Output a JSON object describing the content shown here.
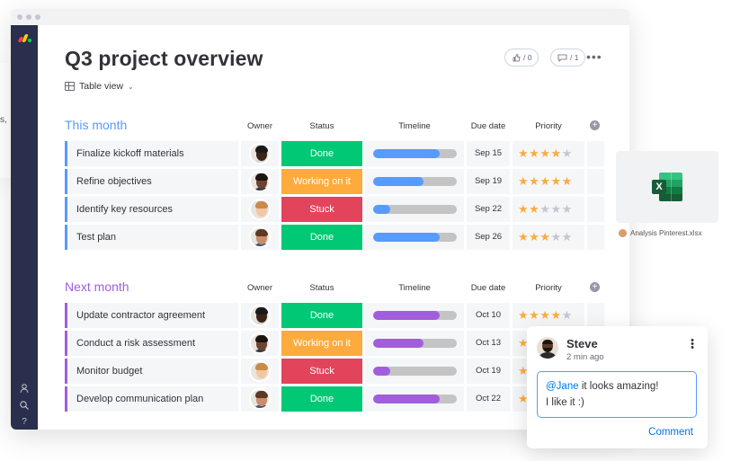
{
  "ghost": {
    "fragment": "s,"
  },
  "board": {
    "title": "Q3 project overview",
    "view_label": "Table view",
    "likes": "/ 0",
    "updates": "/ 1",
    "more": "•••"
  },
  "columns": {
    "owner": "Owner",
    "status": "Status",
    "timeline": "Timeline",
    "due": "Due date",
    "priority": "Priority",
    "add": "+"
  },
  "groups": [
    {
      "title": "This month",
      "color": "#579bfc",
      "rows": [
        {
          "name": "Finalize kickoff materials",
          "status": "Done",
          "status_color": "#00c875",
          "timeline_progress": 0.8,
          "due": "Sep 15",
          "priority": 4
        },
        {
          "name": "Refine objectives",
          "status": "Working on it",
          "status_color": "#fdab3d",
          "timeline_progress": 0.6,
          "due": "Sep 19",
          "priority": 5
        },
        {
          "name": "Identify key resources",
          "status": "Stuck",
          "status_color": "#e2445c",
          "timeline_progress": 0.2,
          "due": "Sep 22",
          "priority": 2
        },
        {
          "name": "Test plan",
          "status": "Done",
          "status_color": "#00c875",
          "timeline_progress": 0.8,
          "due": "Sep 26",
          "priority": 3
        }
      ]
    },
    {
      "title": "Next month",
      "color": "#a25ddc",
      "rows": [
        {
          "name": "Update contractor agreement",
          "status": "Done",
          "status_color": "#00c875",
          "timeline_progress": 0.8,
          "due": "Oct 10",
          "priority": 4
        },
        {
          "name": "Conduct a risk assessment",
          "status": "Working on it",
          "status_color": "#fdab3d",
          "timeline_progress": 0.6,
          "due": "Oct 13",
          "priority": 3
        },
        {
          "name": "Monitor budget",
          "status": "Stuck",
          "status_color": "#e2445c",
          "timeline_progress": 0.2,
          "due": "Oct 19",
          "priority": 4
        },
        {
          "name": "Develop communication plan",
          "status": "Done",
          "status_color": "#00c875",
          "timeline_progress": 0.8,
          "due": "Oct 22",
          "priority": 2
        }
      ]
    }
  ],
  "attachment": {
    "file_name": "Analysis Pinterest.xlsx",
    "badge": "X"
  },
  "comment": {
    "author": "Steve",
    "time": "2 min ago",
    "mention": "@Jane",
    "text_after_mention": " it looks amazing!",
    "text_line2": "I like it :)",
    "action": "Comment"
  },
  "colors": {
    "sidebar": "#292f4c",
    "blue_group": "#579bfc",
    "purple_group": "#a25ddc",
    "done": "#00c875",
    "working": "#fdab3d",
    "stuck": "#e2445c",
    "star": "#fdab3d",
    "link": "#0073ea"
  }
}
